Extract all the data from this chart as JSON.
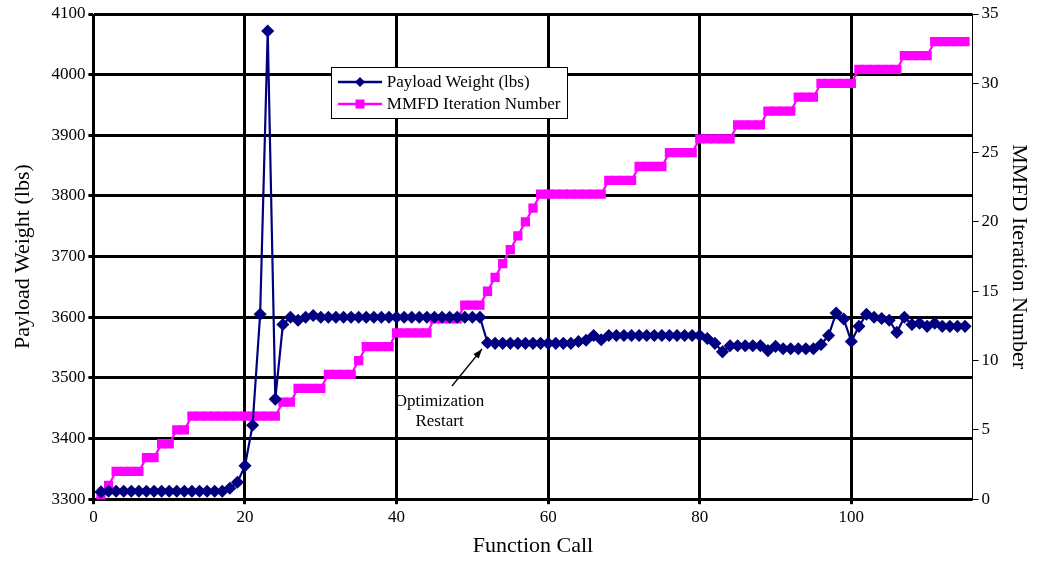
{
  "chart_data": {
    "type": "line",
    "xlabel": "Function Call",
    "ylabel": "Payload Weight (lbs)",
    "y2label": "MMFD Iteration Number",
    "x": [
      1,
      2,
      3,
      4,
      5,
      6,
      7,
      8,
      9,
      10,
      11,
      12,
      13,
      14,
      15,
      16,
      17,
      18,
      19,
      20,
      21,
      22,
      23,
      24,
      25,
      26,
      27,
      28,
      29,
      30,
      31,
      32,
      33,
      34,
      35,
      36,
      37,
      38,
      39,
      40,
      41,
      42,
      43,
      44,
      45,
      46,
      47,
      48,
      49,
      50,
      51,
      52,
      53,
      54,
      55,
      56,
      57,
      58,
      59,
      60,
      61,
      62,
      63,
      64,
      65,
      66,
      67,
      68,
      69,
      70,
      71,
      72,
      73,
      74,
      75,
      76,
      77,
      78,
      79,
      80,
      81,
      82,
      83,
      84,
      85,
      86,
      87,
      88,
      89,
      90,
      91,
      92,
      93,
      94,
      95,
      96,
      97,
      98,
      99,
      100,
      101,
      102,
      103,
      104,
      105,
      106,
      107,
      108,
      109,
      110,
      111,
      112,
      113,
      114,
      115
    ],
    "series": [
      {
        "name": "Payload Weight (lbs)",
        "color": "#000080",
        "marker": "diamond",
        "values": [
          3312,
          3313,
          3313,
          3313,
          3313,
          3313,
          3313,
          3313,
          3313,
          3313,
          3313,
          3313,
          3313,
          3313,
          3313,
          3313,
          3313,
          3318,
          3328,
          3355,
          3422,
          3605,
          4072,
          3465,
          3588,
          3600,
          3595,
          3600,
          3603,
          3600,
          3600,
          3600,
          3600,
          3600,
          3600,
          3600,
          3600,
          3600,
          3600,
          3600,
          3600,
          3600,
          3600,
          3600,
          3600,
          3600,
          3600,
          3600,
          3600,
          3600,
          3600,
          3558,
          3557,
          3557,
          3557,
          3557,
          3557,
          3557,
          3557,
          3557,
          3557,
          3557,
          3557,
          3560,
          3562,
          3570,
          3563,
          3570,
          3570,
          3570,
          3570,
          3570,
          3570,
          3570,
          3570,
          3570,
          3570,
          3570,
          3570,
          3570,
          3565,
          3557,
          3543,
          3553,
          3553,
          3553,
          3553,
          3553,
          3545,
          3552,
          3548,
          3548,
          3548,
          3548,
          3548,
          3555,
          3570,
          3607,
          3597,
          3560,
          3585,
          3605,
          3600,
          3598,
          3595,
          3575,
          3600,
          3588,
          3590,
          3585,
          3590,
          3585,
          3585,
          3585,
          3585
        ]
      },
      {
        "name": "MMFD Iteration Number",
        "color": "#ff00ff",
        "marker": "square",
        "axis": "y2",
        "values": [
          0,
          1,
          2,
          2,
          2,
          2,
          3,
          3,
          4,
          4,
          5,
          5,
          6,
          6,
          6,
          6,
          6,
          6,
          6,
          6,
          6,
          6,
          6,
          6,
          7,
          7,
          8,
          8,
          8,
          8,
          9,
          9,
          9,
          9,
          10,
          11,
          11,
          11,
          11,
          12,
          12,
          12,
          12,
          12,
          13,
          13,
          13,
          13,
          14,
          14,
          14,
          15,
          16,
          17,
          18,
          19,
          20,
          21,
          22,
          22,
          22,
          22,
          22,
          22,
          22,
          22,
          22,
          23,
          23,
          23,
          23,
          24,
          24,
          24,
          24,
          25,
          25,
          25,
          25,
          26,
          26,
          26,
          26,
          26,
          27,
          27,
          27,
          27,
          28,
          28,
          28,
          28,
          29,
          29,
          29,
          30,
          30,
          30,
          30,
          30,
          31,
          31,
          31,
          31,
          31,
          31,
          32,
          32,
          32,
          32,
          33,
          33,
          33,
          33,
          33
        ]
      }
    ],
    "xlim": [
      0,
      116
    ],
    "xticks": [
      0,
      20,
      40,
      60,
      80,
      100
    ],
    "ylim": [
      3300,
      4100
    ],
    "yticks": [
      3300,
      3400,
      3500,
      3600,
      3700,
      3800,
      3900,
      4000,
      4100
    ],
    "y2lim": [
      0,
      35
    ],
    "y2ticks": [
      0,
      5,
      10,
      15,
      20,
      25,
      30,
      35
    ],
    "grid": true,
    "legend": "top",
    "line_style": "solid",
    "annotations": [
      {
        "text": "Optimization\nRestart",
        "x": 52,
        "y": 3557
      }
    ]
  }
}
